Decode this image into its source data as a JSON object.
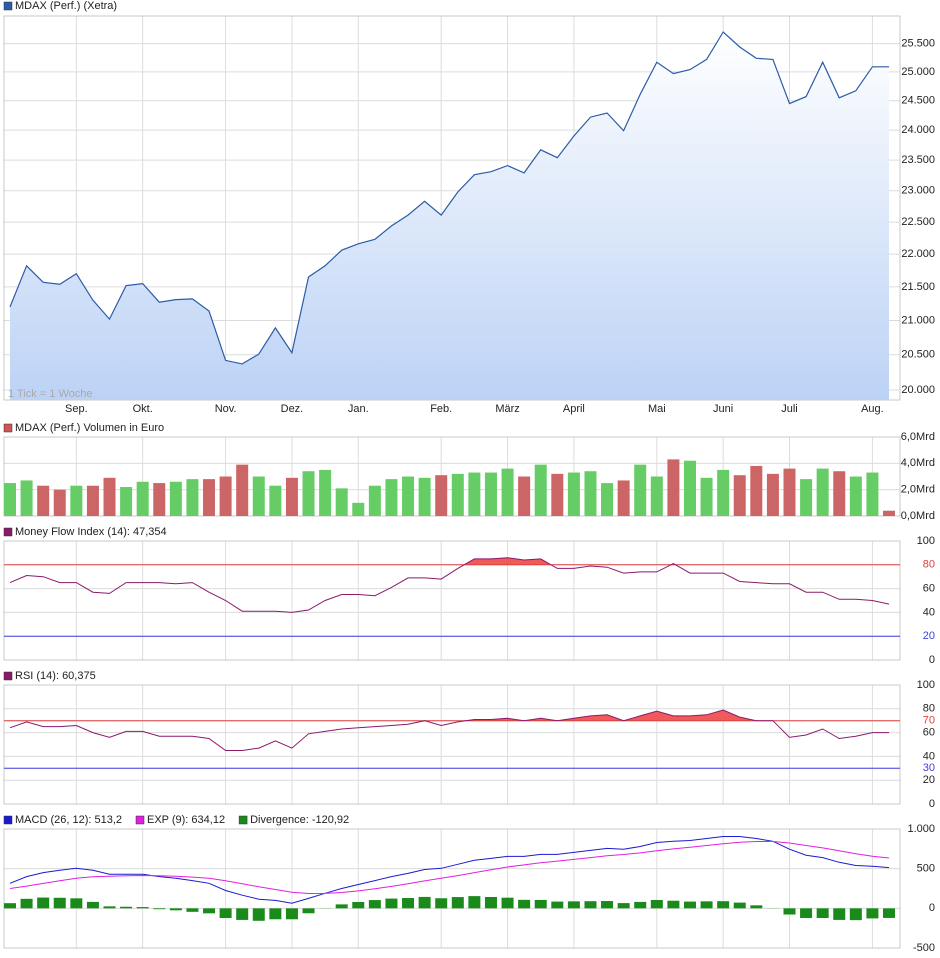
{
  "chart_data": [
    {
      "type": "area",
      "title": "MDAX (Perf.) (Xetra)",
      "note": "1 Tick = 1 Woche",
      "categories": [
        null,
        null,
        null,
        null,
        "Sep.",
        null,
        null,
        null,
        "Okt.",
        null,
        null,
        null,
        null,
        "Nov.",
        null,
        null,
        null,
        "Dez.",
        null,
        null,
        null,
        "Jan.",
        null,
        null,
        null,
        null,
        "Feb.",
        null,
        null,
        null,
        "März",
        null,
        null,
        null,
        "April",
        null,
        null,
        null,
        null,
        "Mai",
        null,
        null,
        null,
        "Juni",
        null,
        null,
        null,
        "Juli",
        null,
        null,
        null,
        null,
        "Aug.",
        null
      ],
      "values": [
        21200,
        21820,
        21570,
        21540,
        21700,
        21300,
        21020,
        21520,
        21550,
        21270,
        21310,
        21320,
        21140,
        20420,
        20370,
        20510,
        20890,
        20530,
        21650,
        21820,
        22060,
        22160,
        22230,
        22440,
        22610,
        22830,
        22610,
        22980,
        23260,
        23310,
        23410,
        23290,
        23670,
        23540,
        23900,
        24220,
        24290,
        23990,
        24610,
        25170,
        24970,
        25040,
        25220,
        25710,
        25440,
        25240,
        25220,
        24450,
        24570,
        25170,
        24550,
        24670,
        25090,
        25090
      ],
      "color": "#2b5ca8",
      "fill": "#bcd2f5",
      "log": true,
      "grid": true,
      "ylim": [
        19860,
        26000
      ],
      "yticks": [
        {
          "value": 20000,
          "label": "20.000"
        },
        {
          "value": 20500,
          "label": "20.500"
        },
        {
          "value": 21000,
          "label": "21.000"
        },
        {
          "value": 21500,
          "label": "21.500"
        },
        {
          "value": 22000,
          "label": "22.000"
        },
        {
          "value": 22500,
          "label": "22.500"
        },
        {
          "value": 23000,
          "label": "23.000"
        },
        {
          "value": 23500,
          "label": "23.500"
        },
        {
          "value": 24000,
          "label": "24.000"
        },
        {
          "value": 24500,
          "label": "24.500"
        },
        {
          "value": 25000,
          "label": "25.000"
        },
        {
          "value": 25500,
          "label": "25.500"
        }
      ]
    },
    {
      "type": "bar",
      "title": "MDAX (Perf.) Volumen in Euro",
      "legend_color": "#cc5555",
      "grid": true,
      "values": [
        2.5,
        2.7,
        2.3,
        2.0,
        2.3,
        2.3,
        2.9,
        2.2,
        2.6,
        2.5,
        2.6,
        2.8,
        2.8,
        3.0,
        3.9,
        3.0,
        2.3,
        2.9,
        3.4,
        3.5,
        2.1,
        1.0,
        2.3,
        2.8,
        3.0,
        2.9,
        3.1,
        3.2,
        3.3,
        3.3,
        3.6,
        3.0,
        3.9,
        3.2,
        3.3,
        3.4,
        2.5,
        2.7,
        3.9,
        3.0,
        4.3,
        4.2,
        2.9,
        3.5,
        3.1,
        3.8,
        3.2,
        3.6,
        2.8,
        3.6,
        3.4,
        3.0,
        3.3,
        0.4
      ],
      "colors": [
        "#66cc66",
        "#66cc66",
        "#cc6666",
        "#cc6666",
        "#66cc66",
        "#cc6666",
        "#cc6666",
        "#66cc66",
        "#66cc66",
        "#cc6666",
        "#66cc66",
        "#66cc66",
        "#cc6666",
        "#cc6666",
        "#cc6666",
        "#66cc66",
        "#66cc66",
        "#cc6666",
        "#66cc66",
        "#66cc66",
        "#66cc66",
        "#66cc66",
        "#66cc66",
        "#66cc66",
        "#66cc66",
        "#66cc66",
        "#cc6666",
        "#66cc66",
        "#66cc66",
        "#66cc66",
        "#66cc66",
        "#cc6666",
        "#66cc66",
        "#cc6666",
        "#66cc66",
        "#66cc66",
        "#66cc66",
        "#cc6666",
        "#66cc66",
        "#66cc66",
        "#cc6666",
        "#66cc66",
        "#66cc66",
        "#66cc66",
        "#cc6666",
        "#cc6666",
        "#cc6666",
        "#cc6666",
        "#66cc66",
        "#66cc66",
        "#cc6666",
        "#66cc66",
        "#66cc66",
        "#cc6666"
      ],
      "ylim": [
        0,
        6
      ],
      "yticks": [
        {
          "value": 0,
          "label": "0,0Mrd"
        },
        {
          "value": 2,
          "label": "2,0Mrd"
        },
        {
          "value": 4,
          "label": "4,0Mrd"
        },
        {
          "value": 6,
          "label": "6,0Mrd"
        }
      ]
    },
    {
      "type": "line",
      "title": "Money Flow Index (14): 47,354",
      "color": "#8b1a6b",
      "grid": true,
      "values": [
        65,
        71,
        70,
        65,
        65,
        57,
        56,
        65,
        65,
        65,
        64,
        65,
        57,
        50,
        41,
        41,
        41,
        40,
        42,
        50,
        55,
        55,
        54,
        61,
        69,
        69,
        68,
        77,
        85,
        85,
        86,
        84,
        85,
        77,
        77,
        79,
        78,
        73,
        74,
        74,
        81,
        73,
        73,
        73,
        66,
        65,
        64,
        64,
        57,
        57,
        51,
        51,
        50,
        47
      ],
      "ylim": [
        0,
        100
      ],
      "yticks": [
        0,
        20,
        40,
        60,
        80,
        100
      ],
      "upper_band": 80,
      "lower_band": 20,
      "upper_color": "#e04040",
      "lower_color": "#4040e0",
      "band_fill": "#f05a5a"
    },
    {
      "type": "line",
      "title": "RSI (14): 60,375",
      "color": "#8b1a6b",
      "grid": true,
      "values": [
        64,
        69,
        65,
        65,
        66,
        60,
        56,
        61,
        61,
        57,
        57,
        57,
        55,
        45,
        45,
        47,
        53,
        47,
        59,
        61,
        63,
        64,
        65,
        66,
        67,
        70,
        66,
        69,
        71,
        71,
        72,
        70,
        72,
        70,
        72,
        74,
        75,
        70,
        74,
        78,
        74,
        74,
        75,
        79,
        73,
        70,
        70,
        56,
        58,
        63,
        55,
        57,
        60,
        60
      ],
      "ylim": [
        0,
        100
      ],
      "yticks": [
        0,
        20,
        30,
        40,
        60,
        70,
        80,
        100
      ],
      "upper_band": 70,
      "lower_band": 30,
      "upper_color": "#e04040",
      "lower_color": "#4040e0",
      "band_fill": "#f05a5a"
    },
    {
      "type": "combo",
      "grid": true,
      "series": [
        {
          "name": "MACD (26, 12): 513,2",
          "color": "#1a1ad0",
          "type": "line",
          "values": [
            315,
            400,
            450,
            480,
            505,
            480,
            430,
            430,
            430,
            400,
            380,
            350,
            315,
            225,
            165,
            115,
            100,
            65,
            125,
            190,
            250,
            300,
            350,
            400,
            440,
            490,
            505,
            555,
            605,
            630,
            655,
            655,
            680,
            680,
            705,
            730,
            755,
            745,
            780,
            830,
            845,
            855,
            880,
            905,
            905,
            880,
            845,
            745,
            670,
            640,
            580,
            540,
            530,
            513
          ]
        },
        {
          "name": "EXP (9): 634,12",
          "color": "#e020e0",
          "type": "line",
          "values": [
            250,
            280,
            314,
            347,
            379,
            399,
            405,
            410,
            414,
            411,
            405,
            394,
            378,
            347,
            311,
            272,
            238,
            203,
            187,
            188,
            200,
            220,
            246,
            277,
            310,
            346,
            378,
            413,
            451,
            487,
            521,
            548,
            574,
            595,
            617,
            640,
            663,
            679,
            699,
            725,
            749,
            770,
            792,
            815,
            833,
            842,
            843,
            823,
            792,
            762,
            726,
            689,
            657,
            634
          ]
        },
        {
          "name": "Divergence: -120,92",
          "color": "#1a8a1a",
          "type": "bar",
          "values": [
            65,
            120,
            136,
            133,
            126,
            81,
            25,
            20,
            16,
            -11,
            -25,
            -44,
            -63,
            -122,
            -146,
            -157,
            -138,
            -138,
            -62,
            2,
            50,
            80,
            104,
            123,
            130,
            144,
            127,
            142,
            154,
            143,
            134,
            107,
            106,
            85,
            88,
            90,
            92,
            66,
            81,
            105,
            96,
            85,
            88,
            90,
            72,
            38,
            2,
            -78,
            -122,
            -122,
            -146,
            -149,
            -127,
            -121
          ]
        }
      ],
      "ylim": [
        -500,
        1000
      ],
      "yticks": [
        -500,
        0,
        500,
        {
          "value": 1000,
          "label": "1.000"
        }
      ]
    }
  ]
}
